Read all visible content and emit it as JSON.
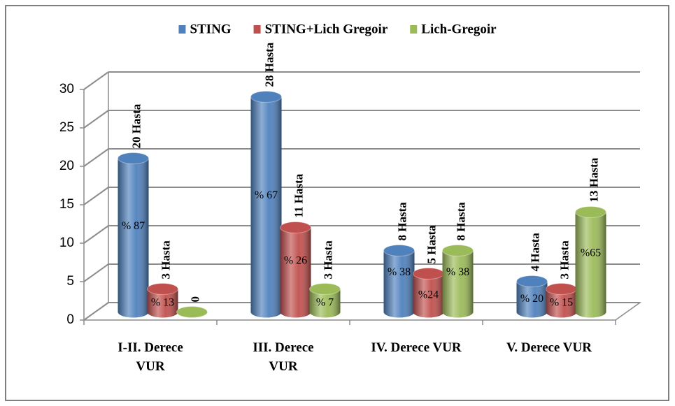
{
  "chart_data": {
    "type": "bar3d",
    "categories": [
      "I-II. Derece VUR",
      "III. Derece VUR",
      "IV. Derece VUR",
      "V. Derece VUR"
    ],
    "series": [
      {
        "name": "STING",
        "color": "#4f81bd",
        "values": [
          20,
          28,
          8,
          4
        ],
        "value_labels": [
          "20 Hasta",
          "28 Hasta",
          "8 Hasta",
          "4 Hasta"
        ],
        "percent_labels": [
          "% 87",
          "% 67",
          "% 38",
          "% 20"
        ]
      },
      {
        "name": "STING+Lich Gregoir",
        "color": "#c0504d",
        "values": [
          3,
          11,
          5,
          3
        ],
        "value_labels": [
          "3 Hasta",
          "11 Hasta",
          "5 Hasta",
          "3 Hasta"
        ],
        "percent_labels": [
          "% 13",
          "% 26",
          "%24",
          "% 15"
        ]
      },
      {
        "name": "Lich-Gregoir",
        "color": "#9bbb59",
        "values": [
          0,
          3,
          8,
          13
        ],
        "value_labels": [
          "0",
          "3 Hasta",
          "8 Hasta",
          "13 Hasta"
        ],
        "percent_labels": [
          null,
          "% 7",
          "% 38",
          "%65"
        ]
      }
    ],
    "ylim": [
      0,
      30
    ],
    "yticks": [
      0,
      5,
      10,
      15,
      20,
      25,
      30
    ],
    "grid": true,
    "legend": "top"
  }
}
